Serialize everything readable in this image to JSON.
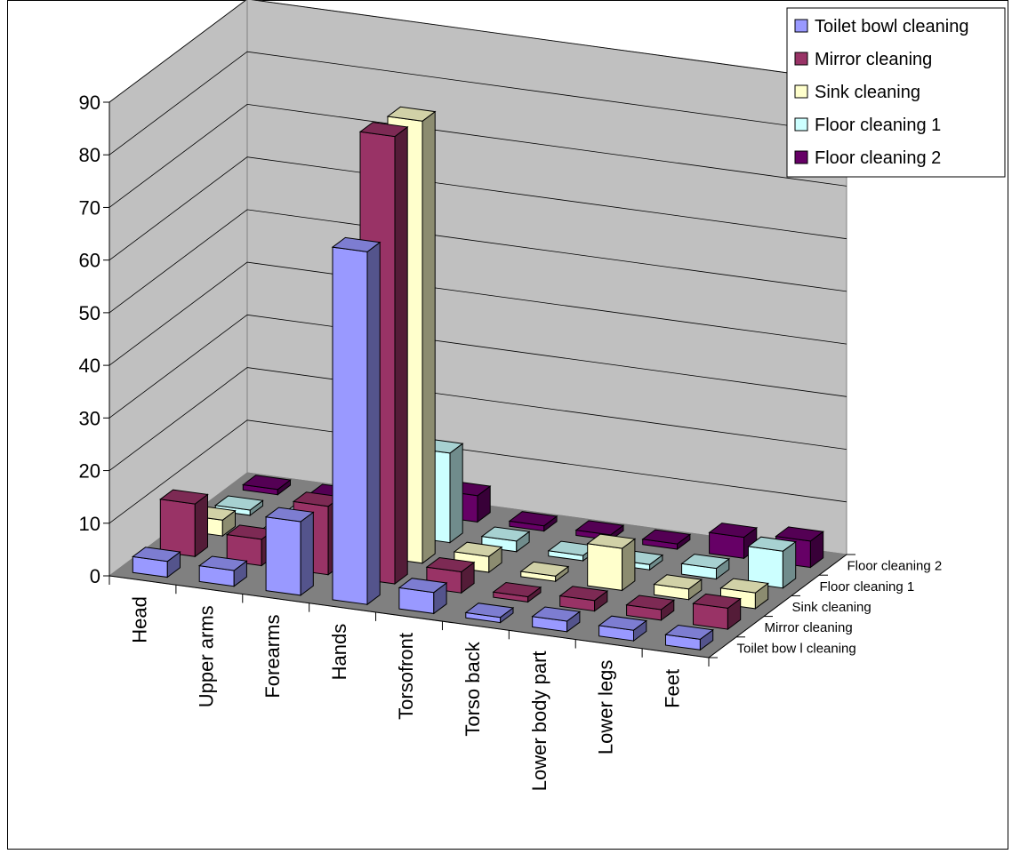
{
  "chart_data": {
    "type": "bar3d",
    "title": "",
    "xlabel": "",
    "ylabel": "",
    "ylim": [
      0,
      90
    ],
    "yticks": [
      0,
      10,
      20,
      30,
      40,
      50,
      60,
      70,
      80,
      90
    ],
    "categories": [
      "Head",
      "Upper arms",
      "Forearms",
      "Hands",
      "Torsofront",
      "Torso back",
      "Lower body part",
      "Lower legs",
      "Feet"
    ],
    "depth_labels": [
      "Toilet bow l cleaning",
      "Mirror cleaning",
      "Sink cleaning",
      "Floor  cleaning  1",
      "Floor  cleaning 2"
    ],
    "series": [
      {
        "name": "Toilet bowl cleaning",
        "color": "#9999FF",
        "values": [
          3,
          3,
          14,
          67,
          4,
          1,
          2,
          2,
          2
        ]
      },
      {
        "name": "Mirror cleaning",
        "color": "#993366",
        "values": [
          10,
          5,
          13,
          85,
          4,
          1,
          2,
          2,
          4
        ]
      },
      {
        "name": "Sink cleaning",
        "color": "#FFFFCC",
        "values": [
          3,
          1,
          3,
          84,
          3,
          1,
          8,
          2,
          3
        ]
      },
      {
        "name": "Floor  cleaning  1",
        "color": "#CCFFFF",
        "values": [
          1,
          1,
          1,
          17,
          2,
          1,
          1,
          2,
          7
        ]
      },
      {
        "name": "Floor  cleaning 2",
        "color": "#660066",
        "values": [
          1,
          1,
          1,
          5,
          1,
          1,
          1,
          4,
          5
        ]
      }
    ],
    "grid": true,
    "legend_position": "top-right",
    "wall_color": "#C0C0C0",
    "floor_color": "#808080"
  }
}
